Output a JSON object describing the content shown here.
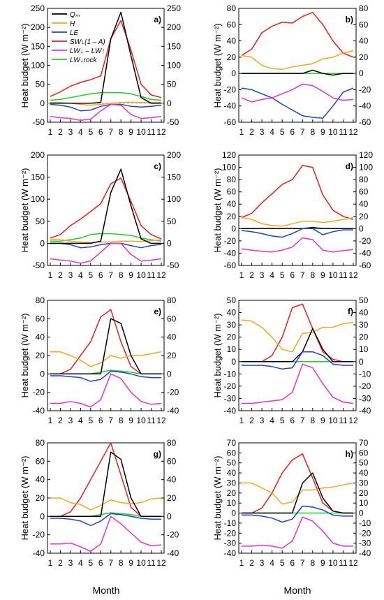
{
  "figure": {
    "ylabel": "Heat budget (W m⁻²)",
    "xlabel": "Month"
  },
  "legend": {
    "placement": "top-left of panel a",
    "entries": [
      {
        "key": "Qm",
        "label": "Qₘ",
        "color": "#000000"
      },
      {
        "key": "H",
        "label": "H",
        "color": "#f5a623"
      },
      {
        "key": "LE",
        "label": "LE",
        "color": "#1f3fd6"
      },
      {
        "key": "SW",
        "label": "SW↓(1 – A)",
        "color": "#ee1c1c"
      },
      {
        "key": "LW",
        "label": "LW↓ – LW↑",
        "color": "#e830d0"
      },
      {
        "key": "LWrock",
        "label": "LW↓rock",
        "color": "#22cc22"
      }
    ]
  },
  "chart_data": [
    {
      "type": "line",
      "panel": "a)",
      "ylim": [
        -50,
        250
      ],
      "yticks": [
        -50,
        0,
        50,
        100,
        150,
        200,
        250
      ],
      "x": [
        1,
        2,
        3,
        4,
        5,
        6,
        7,
        8,
        9,
        10,
        11,
        12
      ],
      "dashed_zero": true,
      "series": [
        {
          "key": "SW",
          "color": "#ee1c1c",
          "values": [
            18,
            30,
            45,
            55,
            62,
            72,
            170,
            218,
            140,
            50,
            22,
            15
          ]
        },
        {
          "key": "LWrock",
          "color": "#22cc22",
          "values": [
            8,
            10,
            15,
            20,
            25,
            28,
            28,
            28,
            25,
            18,
            10,
            8
          ]
        },
        {
          "key": "H",
          "color": "#f5a623",
          "values": [
            2,
            2,
            0,
            -3,
            -5,
            -3,
            0,
            2,
            3,
            2,
            2,
            2
          ]
        },
        {
          "key": "LE",
          "color": "#1f3fd6",
          "values": [
            -3,
            -5,
            -10,
            -20,
            -18,
            -8,
            -3,
            -3,
            -8,
            -10,
            -8,
            -5
          ]
        },
        {
          "key": "LW",
          "color": "#e830d0",
          "values": [
            -35,
            -38,
            -40,
            -45,
            -42,
            -20,
            -3,
            -5,
            -30,
            -40,
            -38,
            -35
          ]
        },
        {
          "key": "Qm",
          "color": "#000000",
          "values": [
            0,
            0,
            0,
            0,
            0,
            2,
            170,
            240,
            125,
            15,
            0,
            0
          ]
        }
      ]
    },
    {
      "type": "line",
      "panel": "b)",
      "ylim": [
        -60,
        80
      ],
      "yticks": [
        -60,
        -40,
        -20,
        0,
        20,
        40,
        60,
        80
      ],
      "x": [
        1,
        2,
        3,
        4,
        5,
        6,
        7,
        8,
        9,
        10,
        11,
        12
      ],
      "series": [
        {
          "key": "SW",
          "color": "#ee1c1c",
          "values": [
            22,
            30,
            50,
            58,
            63,
            62,
            70,
            75,
            60,
            40,
            25,
            20
          ]
        },
        {
          "key": "H",
          "color": "#f5a623",
          "values": [
            22,
            20,
            10,
            6,
            5,
            8,
            10,
            12,
            18,
            20,
            25,
            28
          ]
        },
        {
          "key": "LWrock",
          "color": "#22cc22",
          "values": [
            0,
            0,
            0,
            0,
            0,
            0,
            0,
            0,
            0,
            0,
            0,
            0
          ]
        },
        {
          "key": "Qm",
          "color": "#000000",
          "values": [
            0,
            0,
            0,
            0,
            0,
            0,
            0,
            4,
            0,
            -2,
            0,
            0
          ]
        },
        {
          "key": "LE",
          "color": "#1f3fd6",
          "values": [
            -18,
            -20,
            -25,
            -30,
            -38,
            -45,
            -52,
            -54,
            -55,
            -40,
            -23,
            -18
          ]
        },
        {
          "key": "LW",
          "color": "#e830d0",
          "values": [
            -30,
            -35,
            -32,
            -30,
            -25,
            -20,
            -13,
            -15,
            -22,
            -30,
            -33,
            -32
          ]
        }
      ]
    },
    {
      "type": "line",
      "panel": "c)",
      "ylim": [
        -50,
        200
      ],
      "yticks": [
        -50,
        0,
        50,
        100,
        150,
        200
      ],
      "x": [
        1,
        2,
        3,
        4,
        5,
        6,
        7,
        8,
        9,
        10,
        11,
        12
      ],
      "series": [
        {
          "key": "SW",
          "color": "#ee1c1c",
          "values": [
            12,
            20,
            40,
            55,
            72,
            90,
            135,
            148,
            95,
            40,
            20,
            10
          ]
        },
        {
          "key": "LWrock",
          "color": "#22cc22",
          "values": [
            5,
            5,
            8,
            12,
            20,
            22,
            22,
            20,
            18,
            12,
            8,
            5
          ]
        },
        {
          "key": "H",
          "color": "#f5a623",
          "values": [
            10,
            8,
            5,
            3,
            2,
            3,
            3,
            5,
            5,
            4,
            6,
            8
          ]
        },
        {
          "key": "LE",
          "color": "#1f3fd6",
          "values": [
            0,
            0,
            -3,
            -10,
            -8,
            -3,
            0,
            0,
            -5,
            -10,
            -5,
            -2
          ]
        },
        {
          "key": "LW",
          "color": "#e830d0",
          "values": [
            -35,
            -38,
            -40,
            -45,
            -40,
            -20,
            0,
            0,
            -25,
            -40,
            -38,
            -35
          ]
        },
        {
          "key": "Qm",
          "color": "#000000",
          "values": [
            0,
            0,
            0,
            0,
            0,
            5,
            115,
            168,
            85,
            10,
            0,
            0
          ]
        }
      ]
    },
    {
      "type": "line",
      "panel": "d)",
      "ylim": [
        -60,
        120
      ],
      "yticks": [
        -60,
        -40,
        -20,
        0,
        20,
        40,
        60,
        80,
        100,
        120
      ],
      "x": [
        1,
        2,
        3,
        4,
        5,
        6,
        7,
        8,
        9,
        10,
        11,
        12
      ],
      "series": [
        {
          "key": "SW",
          "color": "#ee1c1c",
          "values": [
            18,
            25,
            42,
            57,
            72,
            80,
            103,
            100,
            55,
            30,
            20,
            15
          ]
        },
        {
          "key": "H",
          "color": "#f5a623",
          "values": [
            18,
            15,
            8,
            5,
            4,
            8,
            12,
            12,
            10,
            12,
            15,
            18
          ]
        },
        {
          "key": "LWrock",
          "color": "#22cc22",
          "values": [
            0,
            0,
            0,
            0,
            0,
            0,
            0,
            0,
            0,
            0,
            0,
            0
          ]
        },
        {
          "key": "Qm",
          "color": "#000000",
          "values": [
            0,
            0,
            0,
            0,
            0,
            0,
            0,
            2,
            0,
            0,
            0,
            0
          ]
        },
        {
          "key": "LE",
          "color": "#1f3fd6",
          "values": [
            -3,
            -5,
            -8,
            -12,
            -14,
            -8,
            0,
            0,
            -10,
            -5,
            -2,
            -2
          ]
        },
        {
          "key": "LW",
          "color": "#e830d0",
          "values": [
            -33,
            -35,
            -37,
            -38,
            -35,
            -30,
            -15,
            -18,
            -35,
            -38,
            -36,
            -34
          ]
        }
      ]
    },
    {
      "type": "line",
      "panel": "e)",
      "ylim": [
        -40,
        80
      ],
      "yticks": [
        -40,
        -20,
        0,
        20,
        40,
        60,
        80
      ],
      "x": [
        1,
        2,
        3,
        4,
        5,
        6,
        7,
        8,
        9,
        10,
        11,
        12
      ],
      "series": [
        {
          "key": "SW",
          "color": "#ee1c1c",
          "values": [
            0,
            0,
            5,
            20,
            35,
            62,
            70,
            35,
            8,
            0,
            0,
            0
          ]
        },
        {
          "key": "H",
          "color": "#f5a623",
          "values": [
            24,
            24,
            20,
            15,
            8,
            12,
            20,
            17,
            20,
            20,
            22,
            24
          ]
        },
        {
          "key": "LWrock",
          "color": "#22cc22",
          "values": [
            0,
            0,
            0,
            0,
            0,
            2,
            4,
            3,
            2,
            0,
            0,
            0
          ]
        },
        {
          "key": "Qm",
          "color": "#000000",
          "values": [
            0,
            0,
            0,
            0,
            0,
            0,
            60,
            55,
            20,
            0,
            0,
            0
          ]
        },
        {
          "key": "LE",
          "color": "#1f3fd6",
          "values": [
            -2,
            -2,
            -3,
            -4,
            -8,
            -6,
            3,
            2,
            0,
            -3,
            -4,
            -4
          ]
        },
        {
          "key": "LW",
          "color": "#e830d0",
          "values": [
            -32,
            -32,
            -30,
            -32,
            -36,
            -28,
            0,
            -5,
            -20,
            -30,
            -33,
            -32
          ]
        }
      ]
    },
    {
      "type": "line",
      "panel": "f)",
      "ylim": [
        -40,
        50
      ],
      "yticks": [
        -40,
        -30,
        -20,
        -10,
        0,
        10,
        20,
        30,
        40,
        50
      ],
      "x": [
        1,
        2,
        3,
        4,
        5,
        6,
        7,
        8,
        9,
        10,
        11,
        12
      ],
      "series": [
        {
          "key": "SW",
          "color": "#ee1c1c",
          "values": [
            0,
            0,
            0,
            5,
            20,
            44,
            47,
            27,
            8,
            2,
            0,
            0
          ]
        },
        {
          "key": "H",
          "color": "#f5a623",
          "values": [
            34,
            33,
            28,
            20,
            10,
            8,
            23,
            24,
            28,
            28,
            31,
            32
          ]
        },
        {
          "key": "LWrock",
          "color": "#22cc22",
          "values": [
            0,
            0,
            0,
            0,
            0,
            0,
            0,
            0,
            0,
            0,
            0,
            0
          ]
        },
        {
          "key": "Qm",
          "color": "#000000",
          "values": [
            0,
            0,
            0,
            0,
            0,
            0,
            8,
            27,
            10,
            0,
            0,
            0
          ]
        },
        {
          "key": "LE",
          "color": "#1f3fd6",
          "values": [
            -3,
            -3,
            -3,
            -4,
            -6,
            -5,
            8,
            8,
            5,
            -2,
            -3,
            -3
          ]
        },
        {
          "key": "LW",
          "color": "#e830d0",
          "values": [
            -34,
            -34,
            -33,
            -32,
            -31,
            -25,
            -2,
            -5,
            -18,
            -29,
            -33,
            -34
          ]
        }
      ]
    },
    {
      "type": "line",
      "panel": "g)",
      "ylim": [
        -40,
        80
      ],
      "yticks": [
        -40,
        -20,
        0,
        20,
        40,
        60,
        80
      ],
      "x": [
        1,
        2,
        3,
        4,
        5,
        6,
        7,
        8,
        9,
        10,
        11,
        12
      ],
      "series": [
        {
          "key": "SW",
          "color": "#ee1c1c",
          "values": [
            0,
            0,
            5,
            20,
            40,
            60,
            80,
            45,
            10,
            0,
            0,
            0
          ]
        },
        {
          "key": "H",
          "color": "#f5a623",
          "values": [
            20,
            20,
            15,
            13,
            7,
            12,
            18,
            15,
            14,
            15,
            19,
            20
          ]
        },
        {
          "key": "LWrock",
          "color": "#22cc22",
          "values": [
            0,
            0,
            0,
            0,
            0,
            2,
            4,
            3,
            2,
            0,
            0,
            0
          ]
        },
        {
          "key": "Qm",
          "color": "#000000",
          "values": [
            0,
            0,
            0,
            0,
            0,
            0,
            70,
            62,
            20,
            0,
            0,
            0
          ]
        },
        {
          "key": "LE",
          "color": "#1f3fd6",
          "values": [
            -2,
            -2,
            -3,
            -5,
            -10,
            -5,
            3,
            2,
            0,
            -2,
            -3,
            -3
          ]
        },
        {
          "key": "LW",
          "color": "#e830d0",
          "values": [
            -30,
            -30,
            -29,
            -33,
            -38,
            -30,
            0,
            -8,
            -18,
            -28,
            -32,
            -31
          ]
        }
      ]
    },
    {
      "type": "line",
      "panel": "h)",
      "ylim": [
        -40,
        70
      ],
      "yticks": [
        -40,
        -30,
        -20,
        -10,
        0,
        10,
        20,
        30,
        40,
        50,
        60,
        70
      ],
      "x": [
        1,
        2,
        3,
        4,
        5,
        6,
        7,
        8,
        9,
        10,
        11,
        12
      ],
      "series": [
        {
          "key": "SW",
          "color": "#ee1c1c",
          "values": [
            0,
            0,
            5,
            20,
            40,
            53,
            59,
            35,
            10,
            2,
            0,
            0
          ]
        },
        {
          "key": "H",
          "color": "#f5a623",
          "values": [
            30,
            30,
            25,
            20,
            9,
            11,
            23,
            23,
            25,
            26,
            28,
            30
          ]
        },
        {
          "key": "LWrock",
          "color": "#22cc22",
          "values": [
            0,
            0,
            0,
            0,
            0,
            0,
            0,
            0,
            0,
            0,
            0,
            0
          ]
        },
        {
          "key": "Qm",
          "color": "#000000",
          "values": [
            0,
            0,
            0,
            0,
            0,
            0,
            30,
            40,
            15,
            2,
            0,
            0
          ]
        },
        {
          "key": "LE",
          "color": "#1f3fd6",
          "values": [
            -2,
            -2,
            -3,
            -5,
            -9,
            -6,
            7,
            6,
            3,
            -2,
            -3,
            -3
          ]
        },
        {
          "key": "LW",
          "color": "#e830d0",
          "values": [
            -33,
            -33,
            -32,
            -33,
            -35,
            -28,
            -4,
            -8,
            -18,
            -30,
            -33,
            -33
          ]
        }
      ]
    }
  ]
}
